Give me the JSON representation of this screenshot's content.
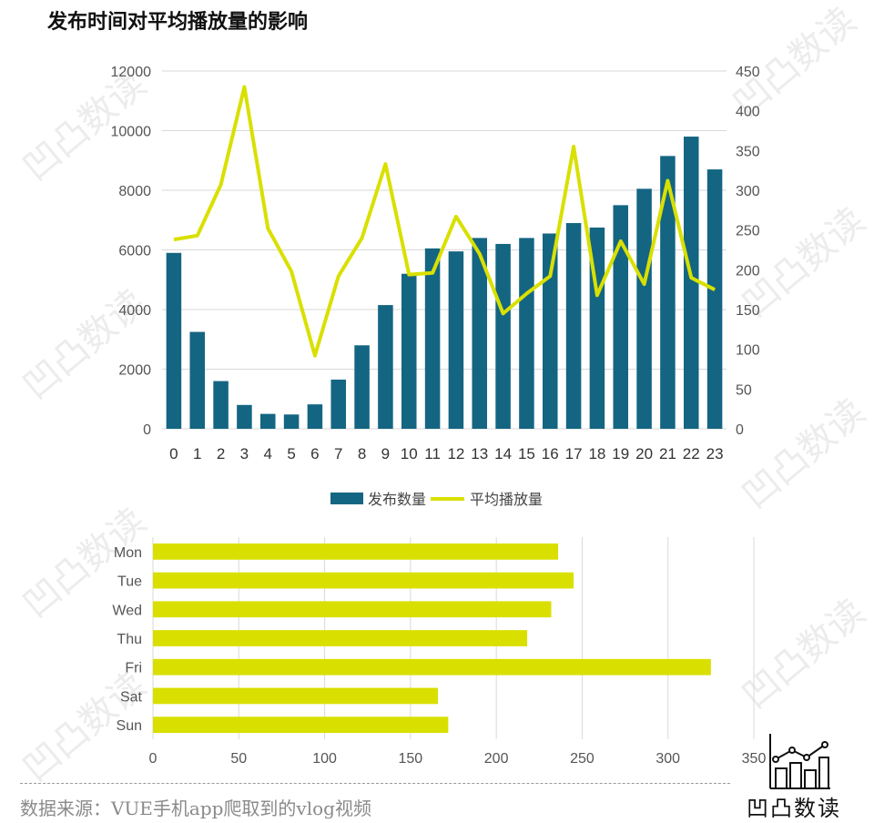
{
  "title": "发布时间对平均播放量的影响",
  "source_note": "数据来源：VUE手机app爬取到的vlog视频",
  "brand": "凹凸数读",
  "watermark_text": "凹凸数读",
  "colors": {
    "bar": "#146582",
    "line": "#d9e000",
    "grid": "#d9d9d9",
    "hbar": "#d9e000"
  },
  "chart_data": [
    {
      "type": "bar+line",
      "title": "发布时间对平均播放量的影响",
      "categories": [
        "0",
        "1",
        "2",
        "3",
        "4",
        "5",
        "6",
        "7",
        "8",
        "9",
        "10",
        "11",
        "12",
        "13",
        "14",
        "15",
        "16",
        "17",
        "18",
        "19",
        "20",
        "21",
        "22",
        "23"
      ],
      "series": [
        {
          "name": "发布数量",
          "type": "bar",
          "axis": "left",
          "values": [
            5900,
            3250,
            1600,
            800,
            500,
            480,
            820,
            1650,
            2800,
            4150,
            5200,
            6050,
            5950,
            6400,
            6200,
            6400,
            6550,
            6900,
            6750,
            7500,
            8050,
            9150,
            9800,
            8700
          ]
        },
        {
          "name": "平均播放量",
          "type": "line",
          "axis": "right",
          "values": [
            238,
            243,
            307,
            430,
            252,
            198,
            92,
            192,
            240,
            333,
            194,
            196,
            267,
            220,
            145,
            170,
            192,
            355,
            168,
            236,
            182,
            312,
            190,
            175
          ]
        }
      ],
      "y_left": {
        "ylim": [
          0,
          12000
        ],
        "ticks": [
          "0",
          "2000",
          "4000",
          "6000",
          "8000",
          "10000",
          "12000"
        ]
      },
      "y_right": {
        "ylim": [
          0,
          450
        ],
        "ticks": [
          "0",
          "50",
          "100",
          "150",
          "200",
          "250",
          "300",
          "350",
          "400",
          "450"
        ]
      },
      "legend": {
        "position": "bottom",
        "entries": [
          "发布数量",
          "平均播放量"
        ]
      }
    },
    {
      "type": "bar",
      "orientation": "horizontal",
      "categories": [
        "Mon",
        "Tue",
        "Wed",
        "Thu",
        "Fri",
        "Sat",
        "Sun"
      ],
      "values": [
        236,
        245,
        232,
        218,
        325,
        166,
        172
      ],
      "xlim": [
        0,
        350
      ],
      "x_ticks": [
        "0",
        "50",
        "100",
        "150",
        "200",
        "250",
        "300",
        "350"
      ]
    }
  ]
}
